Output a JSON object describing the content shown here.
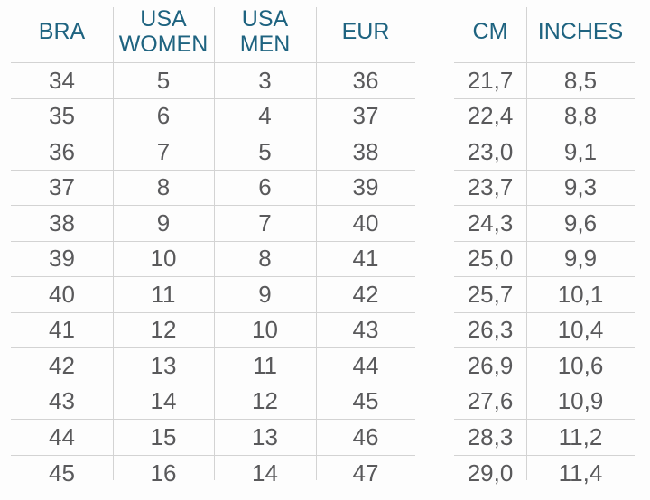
{
  "page": {
    "background": "#fdfdfd",
    "header_text_color": "#1e6380",
    "body_text_color": "#59595b",
    "grid_line_color": "#d3d3d3"
  },
  "size_chart": {
    "left_table": {
      "columns": [
        "BRA",
        "USA WOMEN",
        "USA MEN",
        "EUR"
      ],
      "rows": [
        [
          "34",
          "5",
          "3",
          "36"
        ],
        [
          "35",
          "6",
          "4",
          "37"
        ],
        [
          "36",
          "7",
          "5",
          "38"
        ],
        [
          "37",
          "8",
          "6",
          "39"
        ],
        [
          "38",
          "9",
          "7",
          "40"
        ],
        [
          "39",
          "10",
          "8",
          "41"
        ],
        [
          "40",
          "11",
          "9",
          "42"
        ],
        [
          "41",
          "12",
          "10",
          "43"
        ],
        [
          "42",
          "13",
          "11",
          "44"
        ],
        [
          "43",
          "14",
          "12",
          "45"
        ],
        [
          "44",
          "15",
          "13",
          "46"
        ],
        [
          "45",
          "16",
          "14",
          "47"
        ]
      ]
    },
    "right_table": {
      "columns": [
        "CM",
        "INCHES"
      ],
      "rows": [
        [
          "21,7",
          "8,5"
        ],
        [
          "22,4",
          "8,8"
        ],
        [
          "23,0",
          "9,1"
        ],
        [
          "23,7",
          "9,3"
        ],
        [
          "24,3",
          "9,6"
        ],
        [
          "25,0",
          "9,9"
        ],
        [
          "25,7",
          "10,1"
        ],
        [
          "26,3",
          "10,4"
        ],
        [
          "26,9",
          "10,6"
        ],
        [
          "27,6",
          "10,9"
        ],
        [
          "28,3",
          "11,2"
        ],
        [
          "29,0",
          "11,4"
        ]
      ]
    }
  }
}
